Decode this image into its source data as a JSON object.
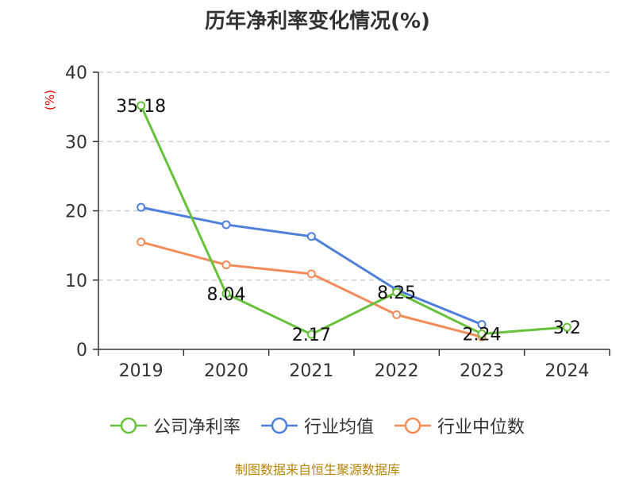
{
  "title": "历年净利率变化情况(%)",
  "source": "制图数据来自恒生聚源数据库",
  "colors": {
    "net": "#67c23a",
    "avg": "#4e7fdb",
    "median": "#f28c5a",
    "axis": "#333333",
    "grid": "#c8c8c8",
    "unit": "#e60000"
  },
  "legend": [
    {
      "label": "公司净利率",
      "color": "#67c23a"
    },
    {
      "label": "行业均值",
      "color": "#4e7fdb"
    },
    {
      "label": "行业中位数",
      "color": "#f28c5a"
    }
  ],
  "chart_data": {
    "type": "line",
    "title": "历年净利率变化情况(%)",
    "ylabel": "(%)",
    "xlabel": "",
    "categories": [
      "2019",
      "2020",
      "2021",
      "2022",
      "2023",
      "2024"
    ],
    "ylim": [
      0,
      40
    ],
    "yticks": [
      0,
      10,
      20,
      30,
      40
    ],
    "grid": true,
    "legend_position": "bottom",
    "series": [
      {
        "name": "公司净利率",
        "values": [
          35.18,
          8.04,
          2.17,
          8.25,
          2.24,
          3.2
        ],
        "labels": [
          "35.18",
          "8.04",
          "2.17",
          "8.25",
          "2.24",
          "3.2"
        ]
      },
      {
        "name": "行业均值",
        "values": [
          20.5,
          18.0,
          16.3,
          8.6,
          3.6,
          null
        ]
      },
      {
        "name": "行业中位数",
        "values": [
          15.5,
          12.2,
          10.9,
          5.0,
          1.8,
          null
        ]
      }
    ]
  }
}
